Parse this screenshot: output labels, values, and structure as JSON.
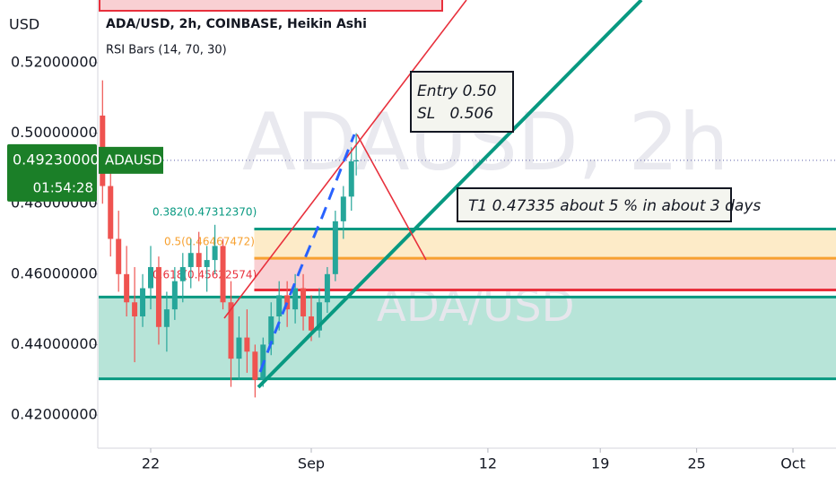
{
  "chart_data": {
    "type": "candlestick",
    "currency": "USD",
    "title": "ADA/USD, 2h, COINBASE, Heikin Ashi",
    "indicator": "RSI Bars (14, 70, 30)",
    "watermark": "ADAUSD, 2h",
    "watermark_symbol": "ADA/USD",
    "up_color": "#26a69a",
    "down_color": "#ef5350",
    "x": [
      19.0,
      19.5,
      20.0,
      20.5,
      21.0,
      21.5,
      22.0,
      22.5,
      23.0,
      23.5,
      24.0,
      24.5,
      25.0,
      25.5,
      26.0,
      26.5,
      27.0,
      27.5,
      28.0,
      28.5,
      29.0,
      29.5,
      30.0,
      30.5,
      31.0,
      31.5,
      32.0,
      32.5,
      33.0,
      33.5,
      34.0,
      34.5,
      34.8
    ],
    "open": [
      0.505,
      0.485,
      0.47,
      0.46,
      0.452,
      0.448,
      0.456,
      0.462,
      0.445,
      0.45,
      0.458,
      0.462,
      0.466,
      0.462,
      0.464,
      0.468,
      0.452,
      0.436,
      0.442,
      0.438,
      0.43,
      0.44,
      0.448,
      0.454,
      0.45,
      0.456,
      0.448,
      0.444,
      0.452,
      0.46,
      0.475,
      0.482,
      0.492
    ],
    "high": [
      0.515,
      0.49,
      0.478,
      0.468,
      0.462,
      0.46,
      0.468,
      0.465,
      0.455,
      0.462,
      0.466,
      0.47,
      0.472,
      0.468,
      0.474,
      0.47,
      0.458,
      0.448,
      0.45,
      0.44,
      0.442,
      0.452,
      0.458,
      0.458,
      0.46,
      0.46,
      0.454,
      0.456,
      0.462,
      0.478,
      0.485,
      0.496,
      0.5
    ],
    "low": [
      0.48,
      0.465,
      0.455,
      0.448,
      0.435,
      0.445,
      0.45,
      0.44,
      0.438,
      0.447,
      0.452,
      0.456,
      0.458,
      0.455,
      0.46,
      0.45,
      0.428,
      0.43,
      0.432,
      0.425,
      0.428,
      0.437,
      0.444,
      0.445,
      0.446,
      0.444,
      0.441,
      0.442,
      0.449,
      0.458,
      0.47,
      0.478,
      0.488
    ],
    "close": [
      0.485,
      0.47,
      0.46,
      0.452,
      0.448,
      0.456,
      0.462,
      0.445,
      0.45,
      0.458,
      0.462,
      0.466,
      0.462,
      0.464,
      0.468,
      0.452,
      0.436,
      0.442,
      0.438,
      0.43,
      0.44,
      0.448,
      0.454,
      0.45,
      0.456,
      0.448,
      0.444,
      0.452,
      0.46,
      0.475,
      0.482,
      0.492,
      0.4923
    ],
    "xlim": [
      18.76,
      64.68
    ],
    "xticks": [
      {
        "value": 22,
        "label": "22"
      },
      {
        "value": 32,
        "label": "Sep"
      },
      {
        "value": 43,
        "label": "12"
      },
      {
        "value": 50,
        "label": "19"
      },
      {
        "value": 56,
        "label": "25"
      },
      {
        "value": 62,
        "label": "Oct"
      }
    ],
    "ylim": [
      0.4106,
      0.5378
    ],
    "yticks": [
      {
        "value": 0.42,
        "label": "0.42000000"
      },
      {
        "value": 0.44,
        "label": "0.44000000"
      },
      {
        "value": 0.46,
        "label": "0.46000000"
      },
      {
        "value": 0.48,
        "label": "0.48000000"
      },
      {
        "value": 0.5,
        "label": "0.50000000"
      },
      {
        "value": 0.52,
        "label": "0.52000000"
      }
    ],
    "last_price": {
      "value": 0.4923,
      "label": "0.49230000"
    },
    "countdown": "01:54:28",
    "symbol": "ADAUSD",
    "zones": [
      {
        "low": 0.4303,
        "high": 0.4535,
        "from": 18.76,
        "color": "#b7e4d8"
      },
      {
        "low": 0.4645,
        "high": 0.4728,
        "from": 28.45,
        "color": "#fdebc8"
      },
      {
        "low": 0.4555,
        "high": 0.4645,
        "from": 28.45,
        "color": "#f9d0d3"
      }
    ],
    "levels": [
      {
        "value": 0.4728,
        "from": 28.45,
        "color": "#089981"
      },
      {
        "value": 0.4645,
        "from": 28.45,
        "color": "#f7a130"
      },
      {
        "value": 0.4555,
        "from": 28.45,
        "color": "#e8303c"
      },
      {
        "value": 0.4535,
        "from": 18.76,
        "color": "#089981"
      },
      {
        "value": 0.4303,
        "from": 18.76,
        "color": "#089981"
      }
    ],
    "fib_labels": [
      {
        "label": "0.382(0.47312370)",
        "color": "#089981"
      },
      {
        "label": "0.5(0.46467472)",
        "color": "#f7a130"
      },
      {
        "label": "0.618(0.45622574)",
        "color": "#e8303c"
      }
    ],
    "notes": {
      "entry": "Entry 0.50",
      "sl": "SL   0.506",
      "target": "T1 0.47335 about 5 % in about 3 days"
    }
  }
}
